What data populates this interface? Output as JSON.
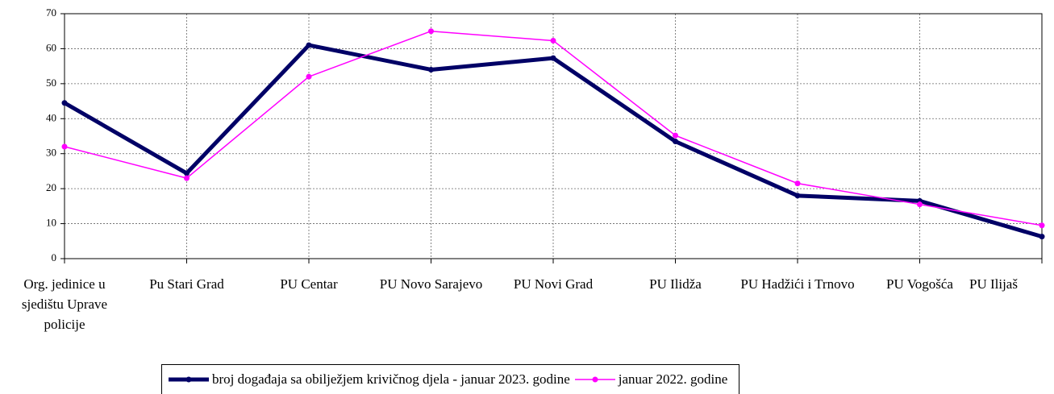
{
  "chart_data": {
    "type": "line",
    "categories": [
      "Org. jedinice u sjedištu Uprave policije",
      "Pu Stari Grad",
      "PU Centar",
      "PU Novo Sarajevo",
      "PU Novi Grad",
      "PU Ilidža",
      "PU Hadžići i Trnovo",
      "PU Vogošća",
      "PU Ilijaš"
    ],
    "series": [
      {
        "name": "broj događaja sa obilježjem krivičnog djela - januar 2023. godine",
        "color": "#000066",
        "values": [
          44.5,
          24.4,
          61,
          54,
          57.3,
          33.5,
          18,
          16.5,
          6.3
        ]
      },
      {
        "name": "januar 2022. godine",
        "color": "#ff00ff",
        "values": [
          32,
          23,
          52,
          65,
          62.3,
          35.2,
          21.5,
          15.5,
          9.5
        ]
      }
    ],
    "ylim": [
      0,
      70
    ],
    "yticks": [
      0,
      10,
      20,
      30,
      40,
      50,
      60,
      70
    ],
    "grid": true
  }
}
